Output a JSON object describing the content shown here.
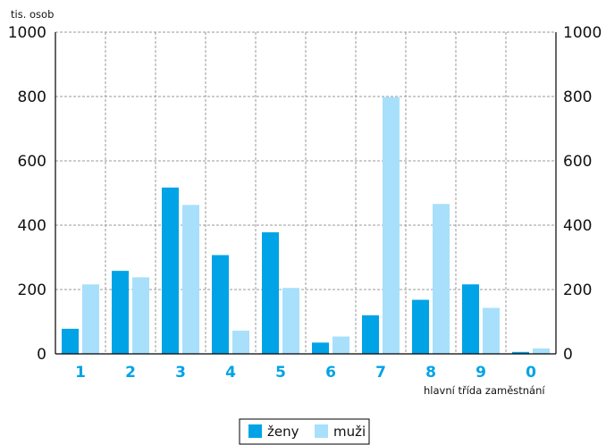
{
  "chart_data": {
    "type": "bar",
    "title": "",
    "y_unit_label": "tis. osob",
    "xlabel": "hlavní třída zaměstnání",
    "ylim": [
      0,
      1000
    ],
    "yticks": [
      0,
      200,
      400,
      600,
      800,
      1000
    ],
    "right_axis_mirrored": true,
    "grid": true,
    "legend_position": "bottom-center",
    "categories": [
      "1",
      "2",
      "3",
      "4",
      "5",
      "6",
      "7",
      "8",
      "9",
      "0"
    ],
    "series": [
      {
        "name": "ženy",
        "color": "#00a3e6",
        "values": [
          78,
          258,
          517,
          307,
          378,
          35,
          120,
          168,
          216,
          6
        ]
      },
      {
        "name": "muži",
        "color": "#a8e0fb",
        "values": [
          216,
          238,
          463,
          72,
          205,
          54,
          798,
          466,
          143,
          17
        ]
      }
    ],
    "category_label_color": "#00a3e6"
  }
}
